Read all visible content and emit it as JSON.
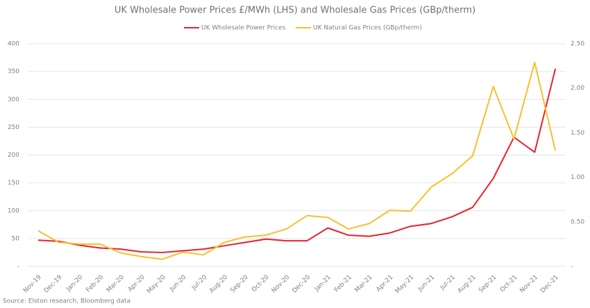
{
  "chart_data": {
    "type": "line",
    "title": "UK Wholesale Power Prices £/MWh (LHS) and Wholesale Gas Prices (GBp/therm)",
    "source": "Source: Elston research, Bloomberg data",
    "categories": [
      "Nov-19",
      "Dec-19",
      "Jan-20",
      "Feb-20",
      "Mar-20",
      "Apr-20",
      "May-20",
      "Jun-20",
      "Jul-20",
      "Aug-20",
      "Sep-20",
      "Oct-20",
      "Nov-20",
      "Dec-20",
      "Jan-21",
      "Feb-21",
      "Mar-21",
      "Apr-21",
      "May-21",
      "Jun-21",
      "Jul-21",
      "Aug-21",
      "Sep-21",
      "Oct-21",
      "Nov-21",
      "Dec-21"
    ],
    "series": [
      {
        "name": "UK Wholesale Power Prices",
        "color": "#e8202a",
        "axis": "y",
        "values": [
          47,
          45,
          38,
          33,
          31,
          26,
          25,
          28,
          31,
          37,
          43,
          49,
          46,
          46,
          69,
          56,
          54,
          60,
          72,
          77,
          89,
          106,
          158,
          232,
          205,
          355
        ]
      },
      {
        "name": "UK Natural Gas Prices (GBp/therm)",
        "color": "#f5c02a",
        "axis": "y2",
        "values": [
          0.4,
          0.27,
          0.25,
          0.25,
          0.15,
          0.11,
          0.08,
          0.16,
          0.13,
          0.27,
          0.33,
          0.35,
          0.42,
          0.57,
          0.55,
          0.42,
          0.48,
          0.63,
          0.62,
          0.89,
          1.04,
          1.24,
          2.02,
          1.43,
          2.29,
          1.3
        ]
      }
    ],
    "ylim": [
      0,
      400
    ],
    "yticks": [
      {
        "value": 0,
        "label": "-"
      },
      50,
      100,
      150,
      200,
      250,
      300,
      350,
      400
    ],
    "y2lim": [
      0,
      2.5
    ],
    "y2ticks": [
      {
        "value": 0,
        "label": "-"
      },
      {
        "value": 0.5,
        "label": "0.50"
      },
      {
        "value": 1,
        "label": "1.00"
      },
      {
        "value": 1.5,
        "label": "1.50"
      },
      {
        "value": 2,
        "label": "2.00"
      },
      {
        "value": 2.5,
        "label": "2.50"
      }
    ],
    "grid": true,
    "legend": "top"
  }
}
